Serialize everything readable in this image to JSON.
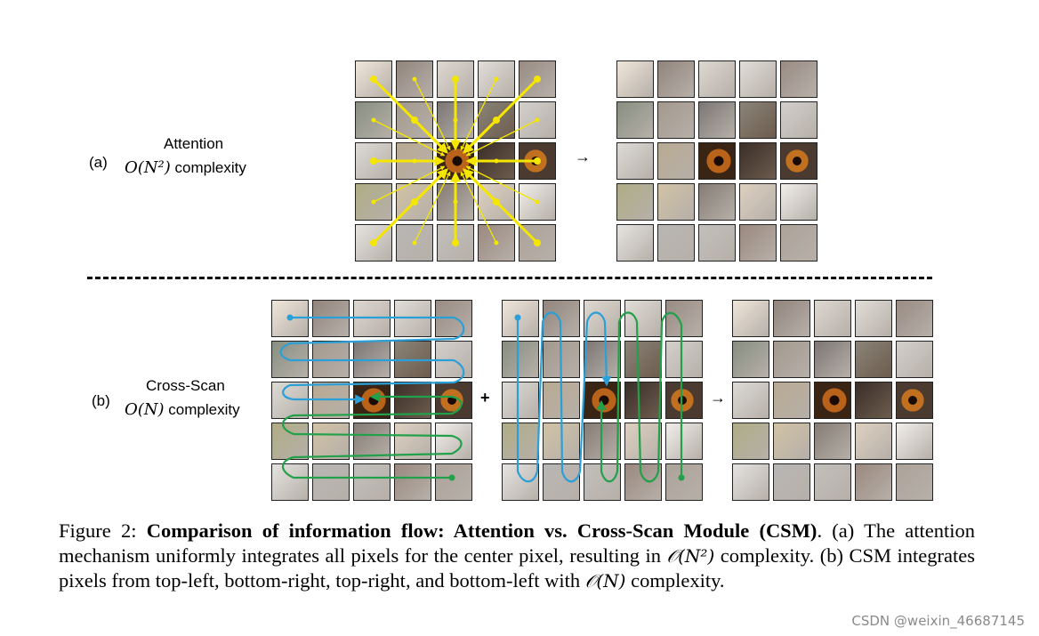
{
  "panel_a": {
    "tag": "(a)",
    "method": "Attention",
    "complexity_math": "O(N²)",
    "complexity_word": "complexity",
    "arrow_glyph": "→"
  },
  "panel_b": {
    "tag": "(b)",
    "method": "Cross-Scan",
    "complexity_math": "O(N)",
    "complexity_word": "complexity",
    "plus_glyph": "+",
    "arrow_glyph": "→"
  },
  "caption": {
    "prefix": "Figure 2: ",
    "bold": "Comparison of information flow: Attention vs.  Cross-Scan Module (CSM)",
    "part1": ". (a) The attention mechanism uniformly integrates all pixels for the center pixel, resulting in ",
    "math1": "𝒪(N²)",
    "part2": " complexity. (b) CSM integrates pixels from top-left, bottom-right, top-right, and bottom-left with ",
    "math2": "𝒪(N)",
    "part3": " complexity."
  },
  "watermark": "CSDN @weixin_46687145",
  "colors": {
    "attention_arrow": "#f5e600",
    "scan_blue": "#2a9fd8",
    "scan_green": "#22a04a",
    "tile_border": "#222222"
  }
}
